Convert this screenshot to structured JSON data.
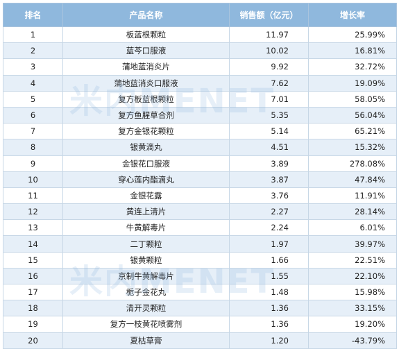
{
  "table": {
    "headers": [
      "排名",
      "产品名称",
      "销售额（亿元）",
      "增长率"
    ],
    "rows": [
      {
        "rank": "1",
        "name": "板蓝根颗粒",
        "sales": "11.97",
        "growth": "25.99%"
      },
      {
        "rank": "2",
        "name": "蓝芩口服液",
        "sales": "10.02",
        "growth": "16.81%"
      },
      {
        "rank": "3",
        "name": "蒲地蓝消炎片",
        "sales": "9.92",
        "growth": "32.72%"
      },
      {
        "rank": "4",
        "name": "蒲地蓝消炎口服液",
        "sales": "7.62",
        "growth": "19.09%"
      },
      {
        "rank": "5",
        "name": "复方板蓝根颗粒",
        "sales": "7.01",
        "growth": "58.05%"
      },
      {
        "rank": "6",
        "name": "复方鱼腥草合剂",
        "sales": "5.35",
        "growth": "56.04%"
      },
      {
        "rank": "7",
        "name": "复方金银花颗粒",
        "sales": "5.14",
        "growth": "65.21%"
      },
      {
        "rank": "8",
        "name": "银黄滴丸",
        "sales": "4.51",
        "growth": "15.32%"
      },
      {
        "rank": "9",
        "name": "金银花口服液",
        "sales": "3.89",
        "growth": "278.08%"
      },
      {
        "rank": "10",
        "name": "穿心莲内酯滴丸",
        "sales": "3.87",
        "growth": "47.84%"
      },
      {
        "rank": "11",
        "name": "金银花露",
        "sales": "3.76",
        "growth": "11.91%"
      },
      {
        "rank": "12",
        "name": "黄连上清片",
        "sales": "2.27",
        "growth": "28.14%"
      },
      {
        "rank": "13",
        "name": "牛黄解毒片",
        "sales": "2.24",
        "growth": "6.01%"
      },
      {
        "rank": "14",
        "name": "二丁颗粒",
        "sales": "1.97",
        "growth": "39.97%"
      },
      {
        "rank": "15",
        "name": "银黄颗粒",
        "sales": "1.66",
        "growth": "22.51%"
      },
      {
        "rank": "16",
        "name": "京制牛黄解毒片",
        "sales": "1.55",
        "growth": "22.10%"
      },
      {
        "rank": "17",
        "name": "栀子金花丸",
        "sales": "1.48",
        "growth": "15.98%"
      },
      {
        "rank": "18",
        "name": "清开灵颗粒",
        "sales": "1.36",
        "growth": "33.15%"
      },
      {
        "rank": "19",
        "name": "复方一枝黄花喷雾剂",
        "sales": "1.36",
        "growth": "19.20%"
      },
      {
        "rank": "20",
        "name": "夏枯草膏",
        "sales": "1.20",
        "growth": "-43.79%"
      }
    ]
  },
  "watermark": {
    "text": "米内MENET"
  },
  "colors": {
    "header_bg": "#8fb8dd",
    "stripe_bg": "#e6eff8",
    "border": "#c7d7e6"
  }
}
